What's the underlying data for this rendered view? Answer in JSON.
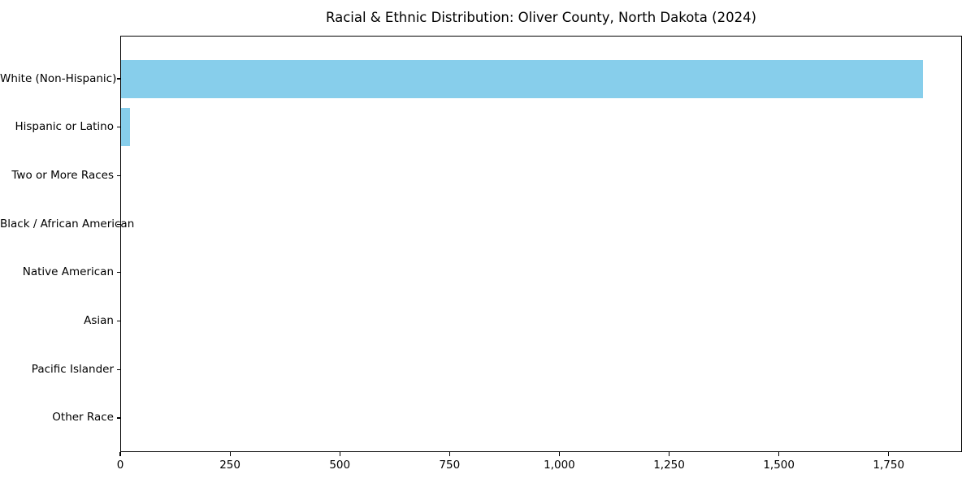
{
  "chart_data": {
    "type": "bar",
    "orientation": "horizontal",
    "title": "Racial & Ethnic Distribution: Oliver County, North Dakota (2024)",
    "categories": [
      "White (Non-Hispanic)",
      "Hispanic or Latino",
      "Two or More Races",
      "Black / African American",
      "Native American",
      "Asian",
      "Pacific Islander",
      "Other Race"
    ],
    "values": [
      1826,
      19,
      0,
      0,
      0,
      0,
      0,
      0
    ],
    "xlabel": "",
    "ylabel": "",
    "xlim": [
      0,
      1917
    ],
    "x_ticks": [
      0,
      250,
      500,
      750,
      1000,
      1250,
      1500,
      1750
    ],
    "x_tick_labels": [
      "0",
      "250",
      "500",
      "750",
      "1,000",
      "1,250",
      "1,500",
      "1,750"
    ],
    "bar_color": "#87CEEB",
    "axis_color": "#000000",
    "background_color": "#ffffff",
    "grid": false,
    "legend_position": "none"
  }
}
